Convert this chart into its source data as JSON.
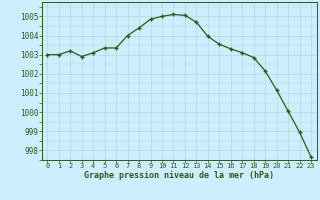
{
  "hours": [
    0,
    1,
    2,
    3,
    4,
    5,
    6,
    7,
    8,
    9,
    10,
    11,
    12,
    13,
    14,
    15,
    16,
    17,
    18,
    19,
    20,
    21,
    22,
    23
  ],
  "pressure": [
    1003.0,
    1003.0,
    1003.2,
    1002.9,
    1003.1,
    1003.35,
    1003.35,
    1004.0,
    1004.4,
    1004.85,
    1005.0,
    1005.1,
    1005.05,
    1004.7,
    1003.95,
    1003.55,
    1003.3,
    1003.1,
    1002.85,
    1002.15,
    1001.15,
    1000.05,
    998.95,
    997.65
  ],
  "line_color": "#2d5a1b",
  "marker_color": "#2d5a1b",
  "bg_color": "#cceeff",
  "grid_major_color": "#aadddd",
  "grid_minor_color": "#cceeff",
  "xlabel": "Graphe pression niveau de la mer (hPa)",
  "ylim": [
    997.5,
    1005.75
  ],
  "yticks": [
    998,
    999,
    1000,
    1001,
    1002,
    1003,
    1004,
    1005
  ],
  "xticks": [
    0,
    1,
    2,
    3,
    4,
    5,
    6,
    7,
    8,
    9,
    10,
    11,
    12,
    13,
    14,
    15,
    16,
    17,
    18,
    19,
    20,
    21,
    22,
    23
  ],
  "xlabel_fontsize": 6.0,
  "xtick_fontsize": 5.0,
  "ytick_fontsize": 5.5
}
